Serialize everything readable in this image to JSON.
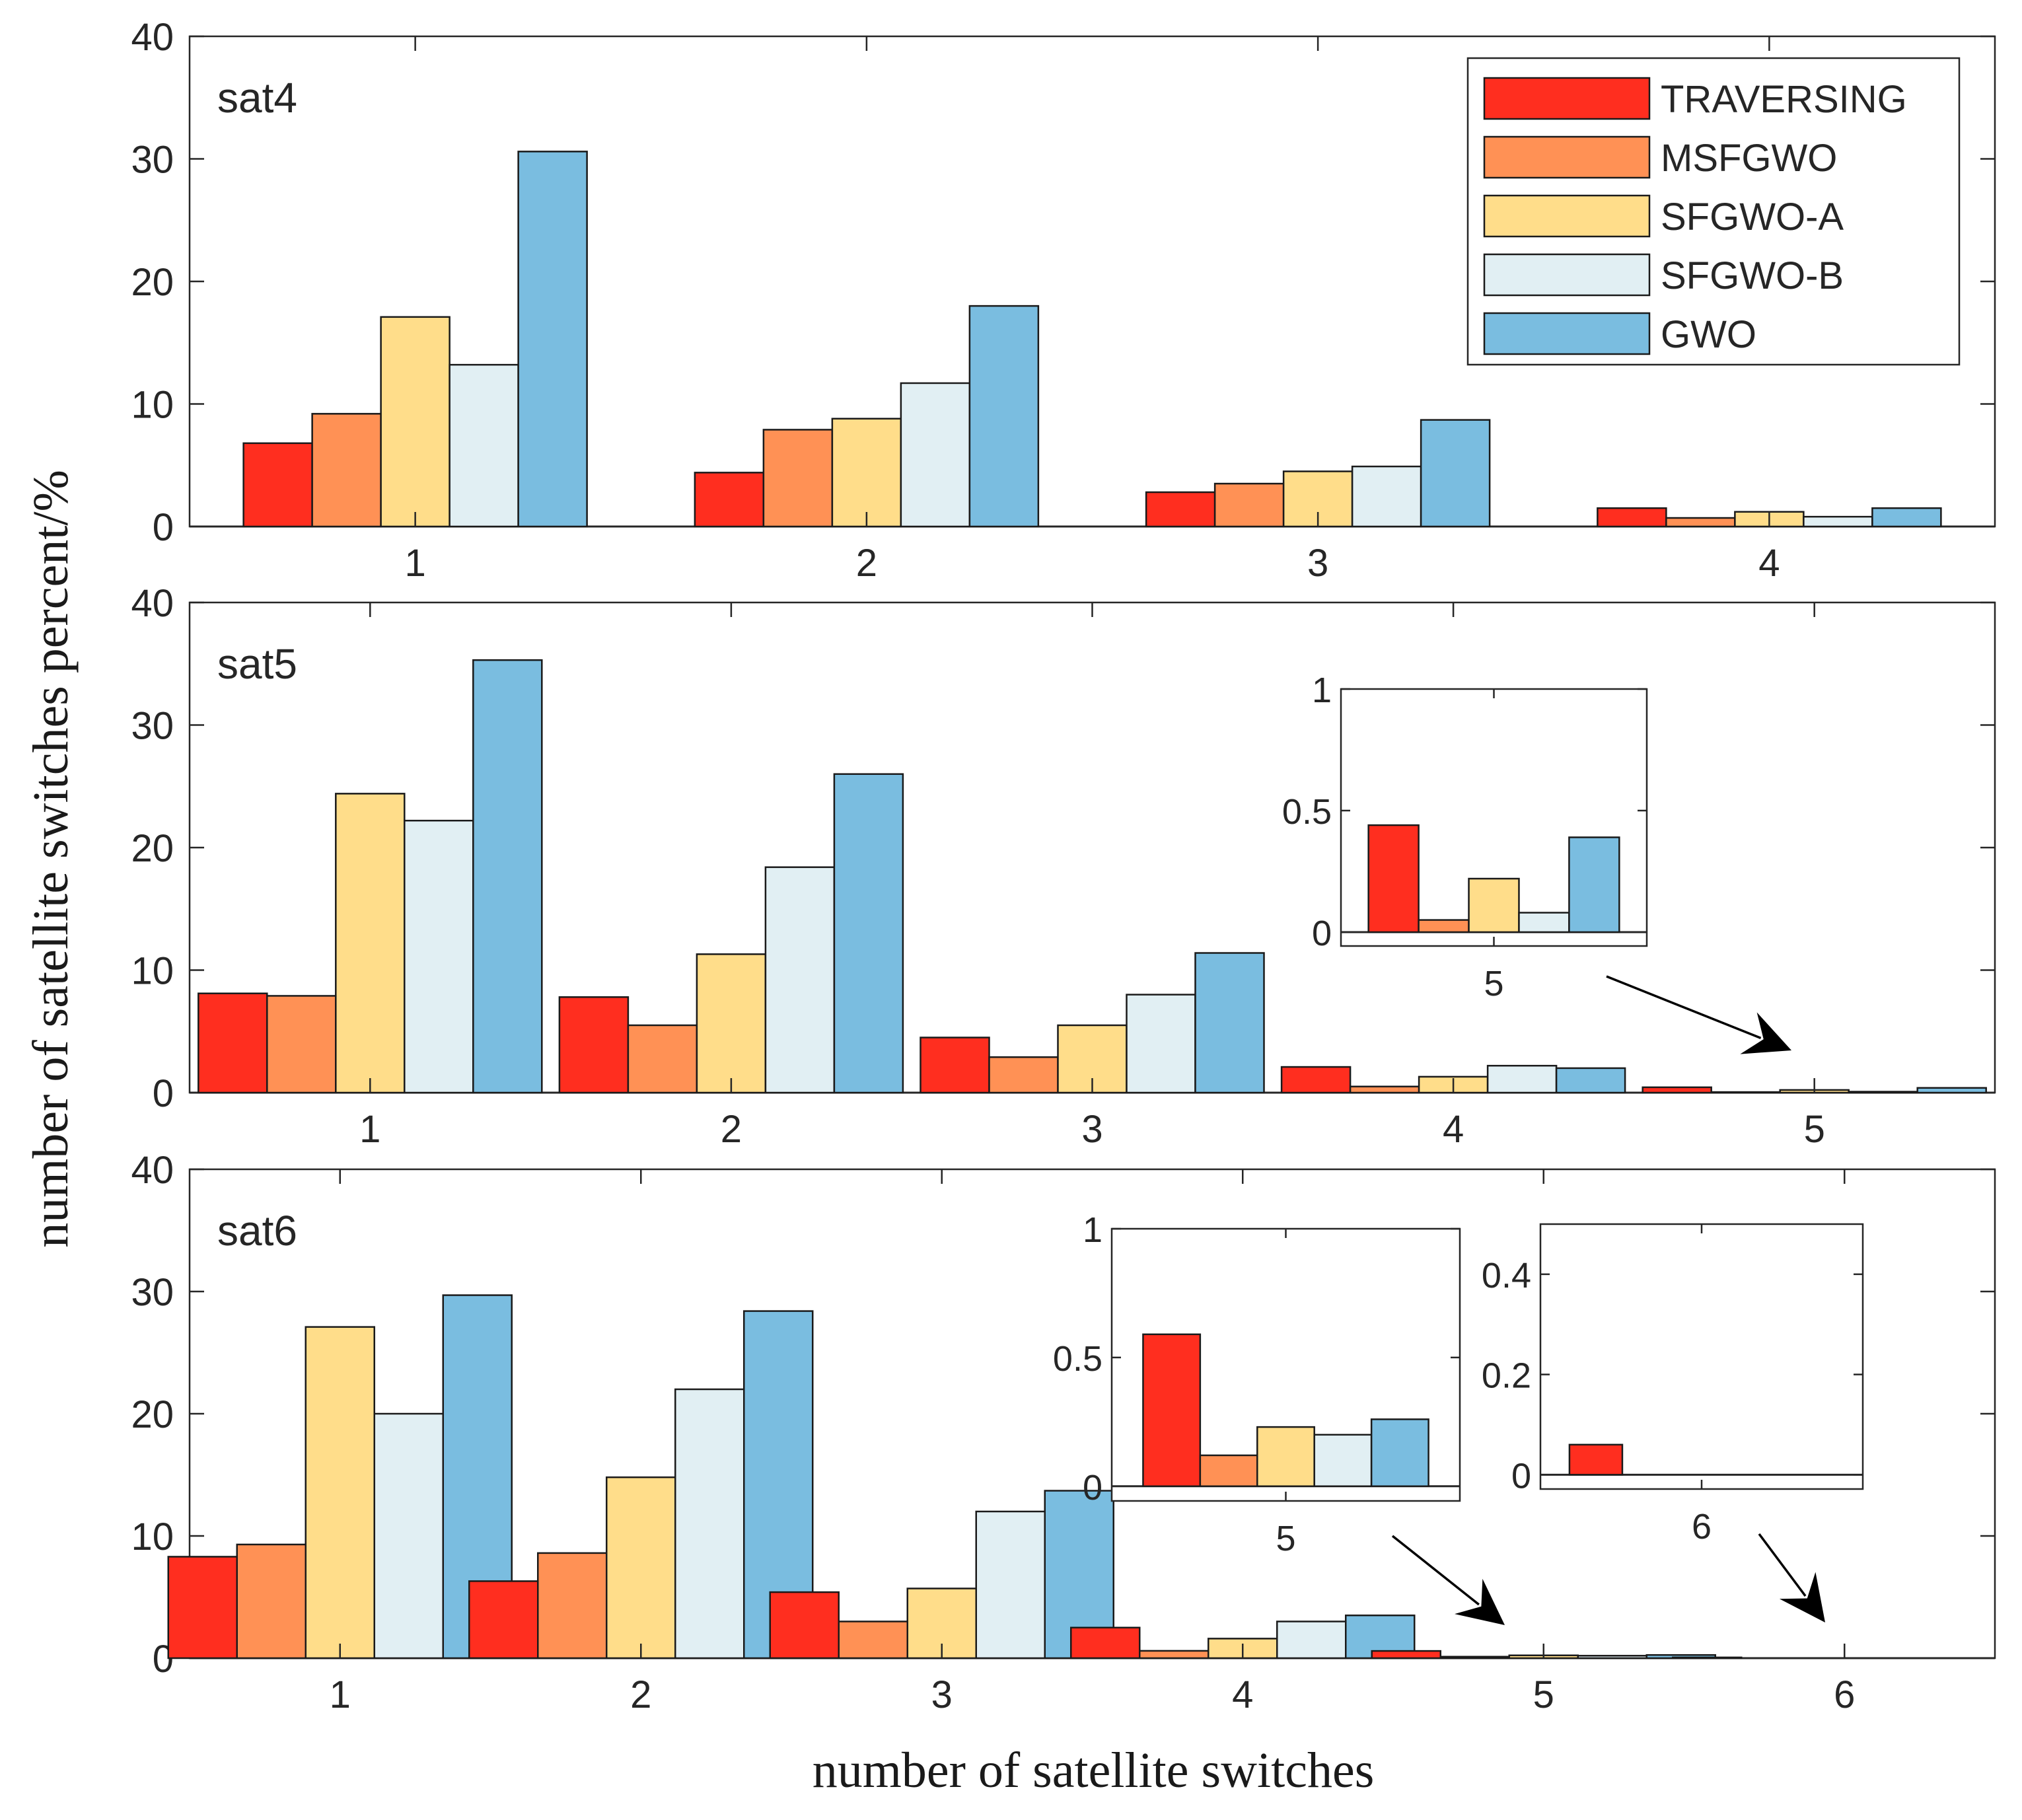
{
  "figure": {
    "ylabel": "number of satellite switches percent/%",
    "xlabel": "number of satellite switches"
  },
  "legend": {
    "entries": [
      {
        "name": "TRAVERSING",
        "color": "#ff2e1f"
      },
      {
        "name": "MSFGWO",
        "color": "#ff9155"
      },
      {
        "name": "SFGWO-A",
        "color": "#ffdd8a"
      },
      {
        "name": "SFGWO-B",
        "color": "#e1eff3"
      },
      {
        "name": "GWO",
        "color": "#7abde0"
      }
    ],
    "placement": "top-right of first panel"
  },
  "chart_data": [
    {
      "type": "bar",
      "panel_label": "sat4",
      "categories": [
        "1",
        "2",
        "3",
        "4"
      ],
      "ylim": [
        0,
        40
      ],
      "yticks": [
        "0",
        "10",
        "20",
        "30",
        "40"
      ],
      "grid": false,
      "series": [
        {
          "name": "TRAVERSING",
          "values": [
            6.8,
            4.4,
            2.8,
            1.5
          ]
        },
        {
          "name": "MSFGWO",
          "values": [
            9.2,
            7.9,
            3.5,
            0.7
          ]
        },
        {
          "name": "SFGWO-A",
          "values": [
            17.1,
            8.8,
            4.5,
            1.2
          ]
        },
        {
          "name": "SFGWO-B",
          "values": [
            13.2,
            11.7,
            4.9,
            0.8
          ]
        },
        {
          "name": "GWO",
          "values": [
            30.6,
            18.0,
            8.7,
            1.5
          ]
        }
      ]
    },
    {
      "type": "bar",
      "panel_label": "sat5",
      "categories": [
        "1",
        "2",
        "3",
        "4",
        "5"
      ],
      "ylim": [
        0,
        40
      ],
      "yticks": [
        "0",
        "10",
        "20",
        "30",
        "40"
      ],
      "grid": false,
      "series": [
        {
          "name": "TRAVERSING",
          "values": [
            8.1,
            7.8,
            4.5,
            2.1,
            0.44
          ]
        },
        {
          "name": "MSFGWO",
          "values": [
            7.9,
            5.5,
            2.9,
            0.5,
            0.05
          ]
        },
        {
          "name": "SFGWO-A",
          "values": [
            24.4,
            11.3,
            5.5,
            1.3,
            0.22
          ]
        },
        {
          "name": "SFGWO-B",
          "values": [
            22.2,
            18.4,
            8.0,
            2.2,
            0.08
          ]
        },
        {
          "name": "GWO",
          "values": [
            35.3,
            26.0,
            11.4,
            2.0,
            0.39
          ]
        }
      ],
      "insets": [
        {
          "category": "5",
          "ylim": [
            0,
            1
          ],
          "yticks": [
            "0",
            "0.5",
            "1"
          ],
          "xtick": "5"
        }
      ]
    },
    {
      "type": "bar",
      "panel_label": "sat6",
      "categories": [
        "1",
        "2",
        "3",
        "4",
        "5",
        "6"
      ],
      "ylim": [
        0,
        40
      ],
      "yticks": [
        "0",
        "10",
        "20",
        "30",
        "40"
      ],
      "grid": false,
      "series": [
        {
          "name": "TRAVERSING",
          "values": [
            8.3,
            6.3,
            5.4,
            2.5,
            0.59,
            0.06
          ]
        },
        {
          "name": "MSFGWO",
          "values": [
            9.3,
            8.6,
            3.0,
            0.6,
            0.12,
            0
          ]
        },
        {
          "name": "SFGWO-A",
          "values": [
            27.1,
            14.8,
            5.7,
            1.6,
            0.23,
            0
          ]
        },
        {
          "name": "SFGWO-B",
          "values": [
            20.0,
            22.0,
            12.0,
            3.0,
            0.2,
            0
          ]
        },
        {
          "name": "GWO",
          "values": [
            29.7,
            28.4,
            13.7,
            3.5,
            0.26,
            0
          ]
        }
      ],
      "insets": [
        {
          "category": "5",
          "ylim": [
            0,
            1
          ],
          "yticks": [
            "0",
            "0.5",
            "1"
          ],
          "xtick": "5"
        },
        {
          "category": "6",
          "ylim": [
            0,
            0.5
          ],
          "yticks": [
            "0",
            "0.2",
            "0.4"
          ],
          "xtick": "6"
        }
      ]
    }
  ]
}
